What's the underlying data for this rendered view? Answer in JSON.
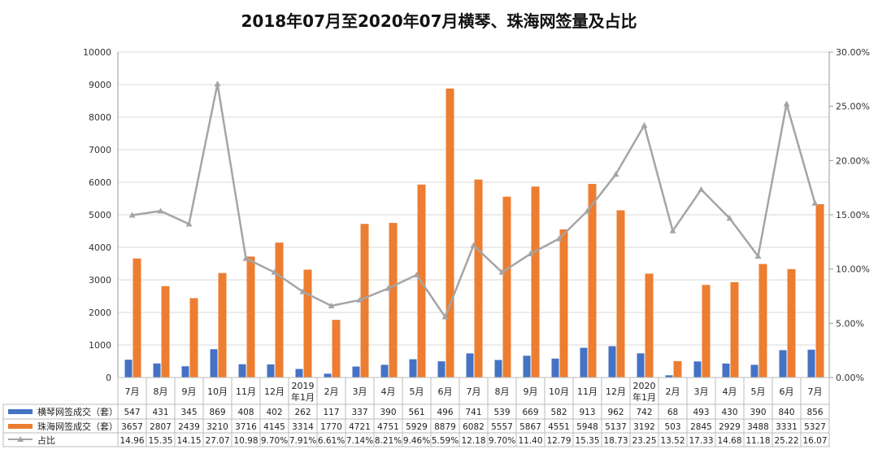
{
  "chart_data": {
    "type": "bar",
    "title": "2018年07月至2020年07月横琴、珠海网签量及占比",
    "categories": [
      "7月",
      "8月",
      "9月",
      "10月",
      "11月",
      "12月",
      "2019年1月",
      "2月",
      "3月",
      "4月",
      "5月",
      "6月",
      "7月",
      "8月",
      "9月",
      "10月",
      "11月",
      "12月",
      "2020年1月",
      "2月",
      "3月",
      "4月",
      "5月",
      "6月",
      "7月"
    ],
    "category_lines": [
      [
        "7月"
      ],
      [
        "8月"
      ],
      [
        "9月"
      ],
      [
        "10月"
      ],
      [
        "11月"
      ],
      [
        "12月"
      ],
      [
        "2019",
        "年1月"
      ],
      [
        "2月"
      ],
      [
        "3月"
      ],
      [
        "4月"
      ],
      [
        "5月"
      ],
      [
        "6月"
      ],
      [
        "7月"
      ],
      [
        "8月"
      ],
      [
        "9月"
      ],
      [
        "10月"
      ],
      [
        "11月"
      ],
      [
        "12月"
      ],
      [
        "2020",
        "年1月"
      ],
      [
        "2月"
      ],
      [
        "3月"
      ],
      [
        "4月"
      ],
      [
        "5月"
      ],
      [
        "6月"
      ],
      [
        "7月"
      ]
    ],
    "series": [
      {
        "name": "横琴网签成交（套）",
        "type": "bar",
        "axis": "left",
        "color": "#4472C4",
        "values": [
          547,
          431,
          345,
          869,
          408,
          402,
          262,
          117,
          337,
          390,
          561,
          496,
          741,
          539,
          669,
          582,
          913,
          962,
          742,
          68,
          493,
          430,
          390,
          840,
          856
        ],
        "labels": [
          "547",
          "431",
          "345",
          "869",
          "408",
          "402",
          "262",
          "117",
          "337",
          "390",
          "561",
          "496",
          "741",
          "539",
          "669",
          "582",
          "913",
          "962",
          "742",
          "68",
          "493",
          "430",
          "390",
          "840",
          "856"
        ]
      },
      {
        "name": "珠海网签成交（套）",
        "type": "bar",
        "axis": "left",
        "color": "#ED7D31",
        "values": [
          3657,
          2807,
          2439,
          3210,
          3716,
          4145,
          3314,
          1770,
          4721,
          4751,
          5929,
          8879,
          6082,
          5557,
          5867,
          4551,
          5948,
          5137,
          3192,
          503,
          2845,
          2929,
          3488,
          3331,
          5327
        ],
        "labels": [
          "3657",
          "2807",
          "2439",
          "3210",
          "3716",
          "4145",
          "3314",
          "1770",
          "4721",
          "4751",
          "5929",
          "8879",
          "6082",
          "5557",
          "5867",
          "4551",
          "5948",
          "5137",
          "3192",
          "503",
          "2845",
          "2929",
          "3488",
          "3331",
          "5327"
        ]
      },
      {
        "name": "占比",
        "type": "line",
        "axis": "right",
        "color": "#A5A5A5",
        "marker": "triangle",
        "values": [
          14.96,
          15.35,
          14.15,
          27.07,
          10.98,
          9.7,
          7.91,
          6.61,
          7.14,
          8.21,
          9.46,
          5.59,
          12.18,
          9.7,
          11.4,
          12.79,
          15.35,
          18.73,
          23.25,
          13.52,
          17.33,
          14.68,
          11.18,
          25.22,
          16.07
        ],
        "labels": [
          "14.96",
          "15.35",
          "14.15",
          "27.07",
          "10.98",
          "9.70%",
          "7.91%",
          "6.61%",
          "7.14%",
          "8.21%",
          "9.46%",
          "5.59%",
          "12.18",
          "9.70%",
          "11.40",
          "12.79",
          "15.35",
          "18.73",
          "23.25",
          "13.52",
          "17.33",
          "14.68",
          "11.18",
          "25.22",
          "16.07"
        ]
      }
    ],
    "ylim": [
      0,
      10000
    ],
    "yticks": [
      "0",
      "1000",
      "2000",
      "3000",
      "4000",
      "5000",
      "6000",
      "7000",
      "8000",
      "9000",
      "10000"
    ],
    "y2lim": [
      0,
      30
    ],
    "y2ticks": [
      "0.00%",
      "5.00%",
      "10.00%",
      "15.00%",
      "20.00%",
      "25.00%",
      "30.00%"
    ],
    "grid": true,
    "legend": "data-table-bottom"
  }
}
